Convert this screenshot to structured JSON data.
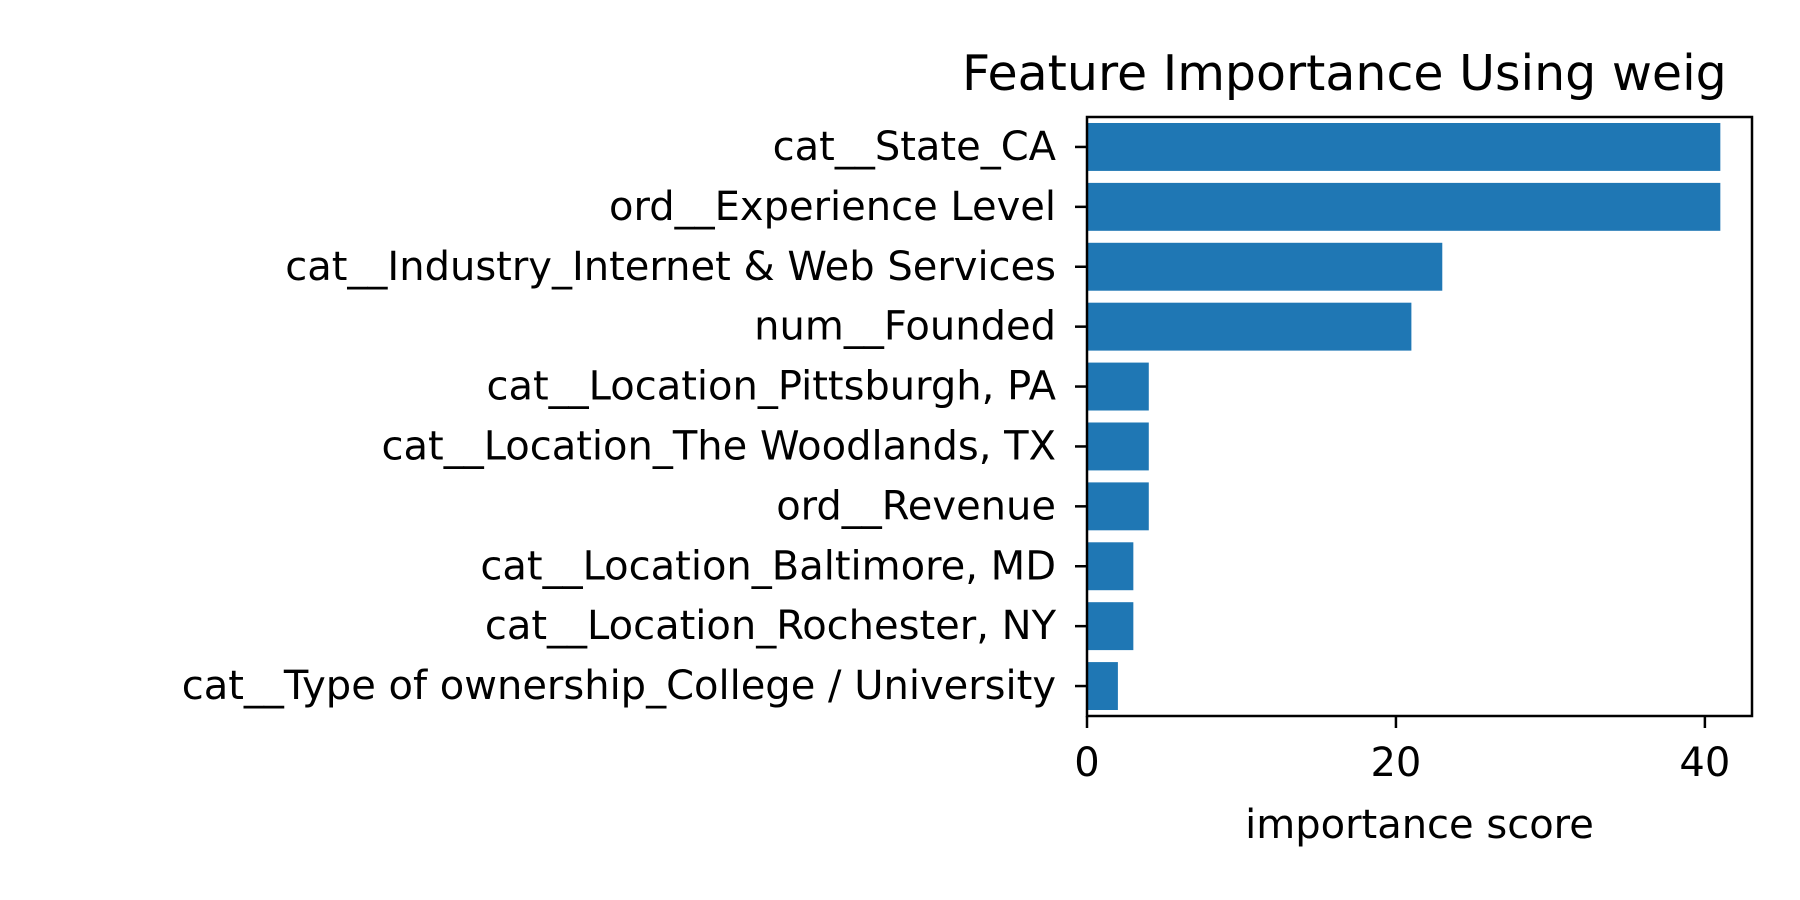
{
  "chart_data": {
    "type": "bar",
    "orientation": "horizontal",
    "title": "Feature Importance Using weig",
    "xlabel": "importance score",
    "ylabel": "",
    "categories": [
      "cat__State_CA",
      "ord__Experience Level",
      "cat__Industry_Internet & Web Services",
      "num__Founded",
      "cat__Location_Pittsburgh, PA",
      "cat__Location_The Woodlands, TX",
      "ord__Revenue",
      "cat__Location_Baltimore, MD",
      "cat__Location_Rochester, NY",
      "cat__Type of ownership_College / University"
    ],
    "values": [
      41,
      41,
      23,
      21,
      4,
      4,
      4,
      3,
      3,
      2
    ],
    "xlim": [
      0,
      43.05
    ],
    "xticks": [
      0,
      20,
      40
    ],
    "xtick_labels": [
      "0",
      "20",
      "40"
    ],
    "grid": false,
    "color": "#1f77b4"
  }
}
